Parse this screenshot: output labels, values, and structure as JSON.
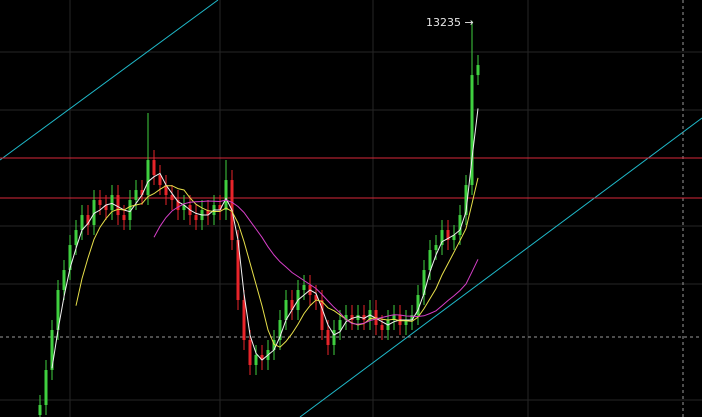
{
  "chart_data": {
    "type": "candlestick",
    "annotation": "13235 →",
    "ylim": [
      6500,
      13590
    ],
    "up_color": "#3fcf3f",
    "down_color": "#e8242a",
    "open": [
      6534,
      6704,
      7299,
      7979,
      8659,
      8999,
      9424,
      9679,
      9934,
      9764,
      10189,
      10104,
      10019,
      10274,
      9934,
      9849,
      10189,
      10359,
      10274,
      10869,
      10614,
      10444,
      10274,
      10189,
      10019,
      10104,
      9934,
      9849,
      10019,
      9934,
      10104,
      10019,
      10529,
      9509,
      8489,
      7809,
      7384,
      7554,
      7469,
      7639,
      7809,
      8149,
      8489,
      8319,
      8659,
      8744,
      8574,
      8489,
      7979,
      7724,
      7979,
      8149,
      8234,
      8149,
      8234,
      8149,
      8319,
      8064,
      7979,
      8149,
      8234,
      8064,
      8149,
      8234,
      8574,
      8999,
      9339,
      9424,
      9679,
      9509,
      9594,
      9934,
      10444,
      12314
    ],
    "high": [
      6874,
      7469,
      8149,
      8829,
      9169,
      9594,
      9849,
      10104,
      10104,
      10359,
      10359,
      10274,
      10444,
      10444,
      10104,
      10359,
      10529,
      10529,
      11668,
      11039,
      10784,
      10614,
      10444,
      10359,
      10274,
      10274,
      10104,
      10189,
      10189,
      10274,
      10274,
      10869,
      10699,
      9679,
      8659,
      7979,
      7724,
      7724,
      7809,
      7979,
      8319,
      8659,
      8659,
      8829,
      8914,
      8914,
      8744,
      8659,
      8149,
      8149,
      8319,
      8404,
      8404,
      8404,
      8404,
      8489,
      8489,
      8234,
      8319,
      8404,
      8404,
      8319,
      8404,
      8744,
      9169,
      9509,
      9594,
      9849,
      9849,
      9764,
      10104,
      10614,
      13235,
      12654
    ],
    "low": [
      6364,
      6534,
      7129,
      7809,
      8489,
      8829,
      9254,
      9509,
      9594,
      9594,
      9934,
      9849,
      9849,
      9764,
      9679,
      9679,
      10019,
      10104,
      10104,
      10444,
      10274,
      10104,
      10019,
      9849,
      9849,
      9764,
      9679,
      9679,
      9764,
      9764,
      9849,
      9849,
      9339,
      8319,
      7639,
      7214,
      7214,
      7299,
      7299,
      7469,
      7639,
      7979,
      8149,
      8149,
      8489,
      8404,
      8319,
      7809,
      7554,
      7554,
      7809,
      7979,
      7979,
      7979,
      7979,
      7979,
      7894,
      7809,
      7809,
      7979,
      7894,
      7894,
      7979,
      8064,
      8404,
      8829,
      9169,
      9254,
      9339,
      9339,
      9424,
      9764,
      10274,
      12144
    ],
    "close": [
      6704,
      7299,
      7979,
      8659,
      8999,
      9424,
      9679,
      9934,
      9764,
      10189,
      10104,
      10019,
      10274,
      9934,
      9849,
      10189,
      10359,
      10274,
      10869,
      10614,
      10444,
      10274,
      10189,
      10019,
      10104,
      9934,
      9849,
      10019,
      9934,
      10104,
      10019,
      10529,
      9509,
      8489,
      7809,
      7384,
      7554,
      7469,
      7639,
      7809,
      8149,
      8489,
      8319,
      8659,
      8744,
      8574,
      8489,
      7979,
      7724,
      7979,
      8149,
      8234,
      8149,
      8234,
      8149,
      8319,
      8064,
      7979,
      8149,
      8234,
      8064,
      8149,
      8234,
      8574,
      8999,
      9339,
      9424,
      9679,
      9509,
      9594,
      9934,
      10444,
      12314,
      12484
    ],
    "moving_averages": [
      {
        "period": 3,
        "color": "#f2f2f2"
      },
      {
        "period": 7,
        "color": "#e8e04a"
      },
      {
        "period": 20,
        "color": "#d63fc8"
      }
    ],
    "levels": [
      {
        "value": 10903,
        "color": "#d8283a",
        "dashed": false
      },
      {
        "value": 10223,
        "color": "#d8283a",
        "dashed": false
      },
      {
        "value": 7860,
        "color": "#9a9a9a",
        "dashed": true
      }
    ]
  }
}
